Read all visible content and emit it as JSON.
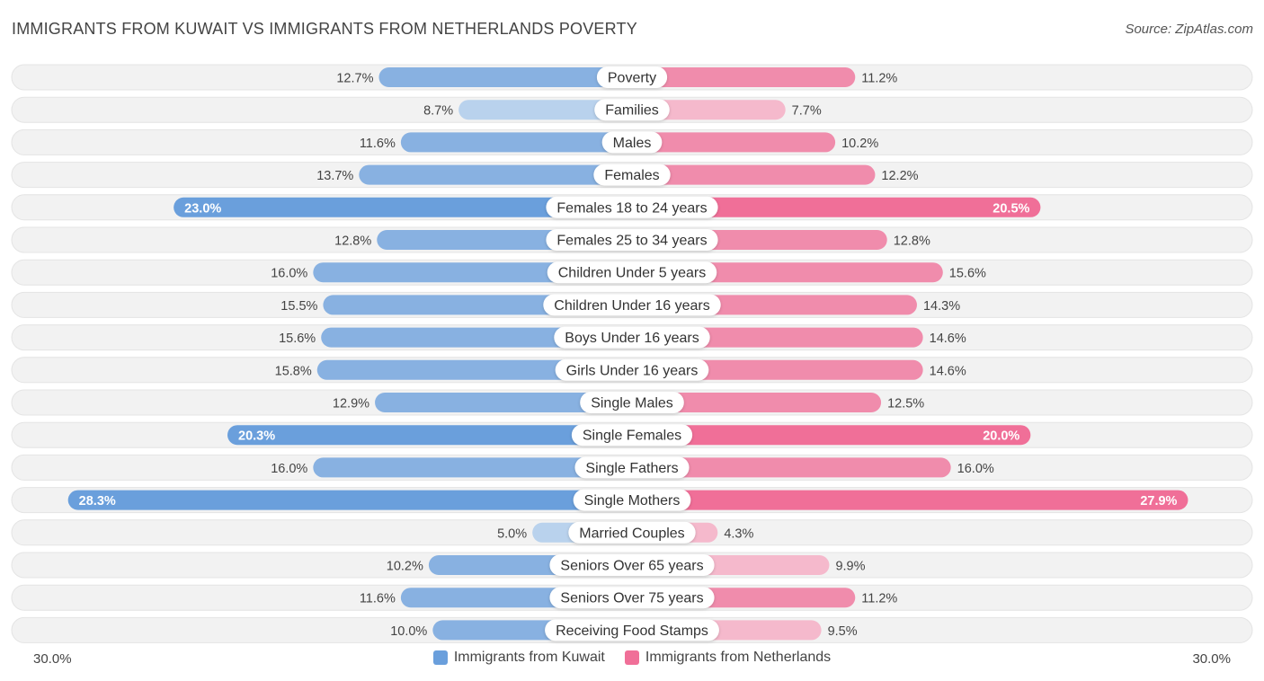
{
  "header": {
    "title": "IMMIGRANTS FROM KUWAIT VS IMMIGRANTS FROM NETHERLANDS POVERTY",
    "source": "Source: ZipAtlas.com"
  },
  "colors": {
    "kuwait": "#6a9fdc",
    "kuwait_light": "#a9c9ec",
    "netherlands": "#f06f98",
    "netherlands_light": "#f6a9c2",
    "row_bg": "#f1f1f1"
  },
  "axis": {
    "left_label": "30.0%",
    "right_label": "30.0%"
  },
  "legend": [
    {
      "label": "Immigrants from Kuwait",
      "color": "#6a9fdc"
    },
    {
      "label": "Immigrants from Netherlands",
      "color": "#f06f98"
    }
  ],
  "chart_data": {
    "type": "bar",
    "orientation": "horizontal-diverging",
    "title": "IMMIGRANTS FROM KUWAIT VS IMMIGRANTS FROM NETHERLANDS POVERTY",
    "xlim": [
      0,
      30
    ],
    "unit": "%",
    "categories": [
      "Poverty",
      "Families",
      "Males",
      "Females",
      "Females 18 to 24 years",
      "Females 25 to 34 years",
      "Children Under 5 years",
      "Children Under 16 years",
      "Boys Under 16 years",
      "Girls Under 16 years",
      "Single Males",
      "Single Females",
      "Single Fathers",
      "Single Mothers",
      "Married Couples",
      "Seniors Over 65 years",
      "Seniors Over 75 years",
      "Receiving Food Stamps"
    ],
    "series": [
      {
        "name": "Immigrants from Kuwait",
        "values": [
          12.7,
          8.7,
          11.6,
          13.7,
          23.0,
          12.8,
          16.0,
          15.5,
          15.6,
          15.8,
          12.9,
          20.3,
          16.0,
          28.3,
          5.0,
          10.2,
          11.6,
          10.0
        ],
        "labels": [
          "12.7%",
          "8.7%",
          "11.6%",
          "13.7%",
          "23.0%",
          "12.8%",
          "16.0%",
          "15.5%",
          "15.6%",
          "15.8%",
          "12.9%",
          "20.3%",
          "16.0%",
          "28.3%",
          "5.0%",
          "10.2%",
          "11.6%",
          "10.0%"
        ]
      },
      {
        "name": "Immigrants from Netherlands",
        "values": [
          11.2,
          7.7,
          10.2,
          12.2,
          20.5,
          12.8,
          15.6,
          14.3,
          14.6,
          14.6,
          12.5,
          20.0,
          16.0,
          27.9,
          4.3,
          9.9,
          11.2,
          9.5
        ],
        "labels": [
          "11.2%",
          "7.7%",
          "10.2%",
          "12.2%",
          "20.5%",
          "12.8%",
          "15.6%",
          "14.3%",
          "14.6%",
          "14.6%",
          "12.5%",
          "20.0%",
          "16.0%",
          "27.9%",
          "4.3%",
          "9.9%",
          "11.2%",
          "9.5%"
        ]
      }
    ]
  }
}
